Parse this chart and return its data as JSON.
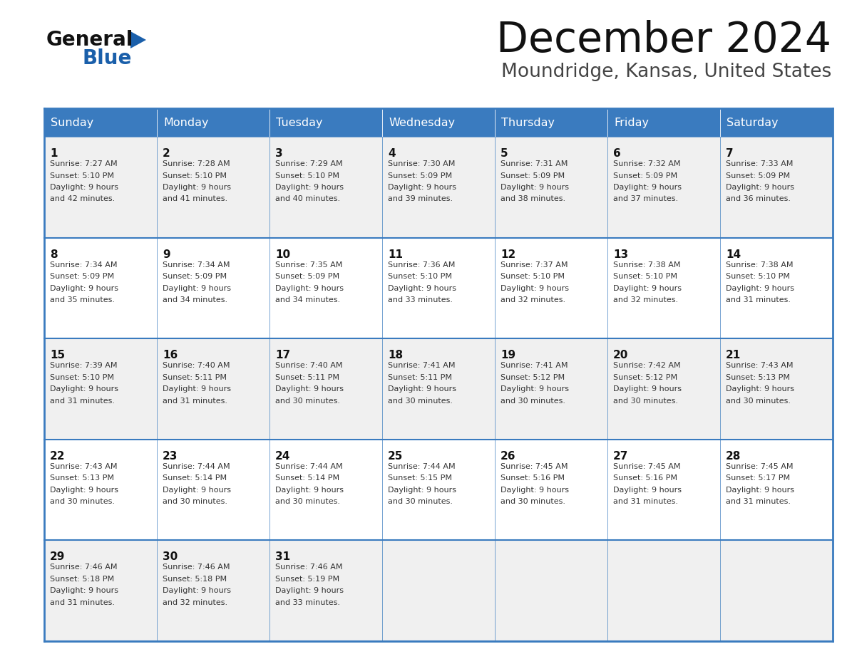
{
  "title": "December 2024",
  "subtitle": "Moundridge, Kansas, United States",
  "days_of_week": [
    "Sunday",
    "Monday",
    "Tuesday",
    "Wednesday",
    "Thursday",
    "Friday",
    "Saturday"
  ],
  "header_bg": "#3a7bbf",
  "header_text": "#ffffff",
  "cell_bg_odd": "#f0f0f0",
  "cell_bg_even": "#ffffff",
  "border_color": "#3a7bbf",
  "day_number_color": "#111111",
  "cell_text_color": "#333333",
  "title_color": "#111111",
  "subtitle_color": "#444444",
  "logo_general_color": "#111111",
  "logo_blue_color": "#1a5faa",
  "logo_tri_color": "#1a5faa",
  "weeks": [
    [
      {
        "day": 1,
        "sunrise": "7:27 AM",
        "sunset": "5:10 PM",
        "daylight": "9 hours and 42 minutes."
      },
      {
        "day": 2,
        "sunrise": "7:28 AM",
        "sunset": "5:10 PM",
        "daylight": "9 hours and 41 minutes."
      },
      {
        "day": 3,
        "sunrise": "7:29 AM",
        "sunset": "5:10 PM",
        "daylight": "9 hours and 40 minutes."
      },
      {
        "day": 4,
        "sunrise": "7:30 AM",
        "sunset": "5:09 PM",
        "daylight": "9 hours and 39 minutes."
      },
      {
        "day": 5,
        "sunrise": "7:31 AM",
        "sunset": "5:09 PM",
        "daylight": "9 hours and 38 minutes."
      },
      {
        "day": 6,
        "sunrise": "7:32 AM",
        "sunset": "5:09 PM",
        "daylight": "9 hours and 37 minutes."
      },
      {
        "day": 7,
        "sunrise": "7:33 AM",
        "sunset": "5:09 PM",
        "daylight": "9 hours and 36 minutes."
      }
    ],
    [
      {
        "day": 8,
        "sunrise": "7:34 AM",
        "sunset": "5:09 PM",
        "daylight": "9 hours and 35 minutes."
      },
      {
        "day": 9,
        "sunrise": "7:34 AM",
        "sunset": "5:09 PM",
        "daylight": "9 hours and 34 minutes."
      },
      {
        "day": 10,
        "sunrise": "7:35 AM",
        "sunset": "5:09 PM",
        "daylight": "9 hours and 34 minutes."
      },
      {
        "day": 11,
        "sunrise": "7:36 AM",
        "sunset": "5:10 PM",
        "daylight": "9 hours and 33 minutes."
      },
      {
        "day": 12,
        "sunrise": "7:37 AM",
        "sunset": "5:10 PM",
        "daylight": "9 hours and 32 minutes."
      },
      {
        "day": 13,
        "sunrise": "7:38 AM",
        "sunset": "5:10 PM",
        "daylight": "9 hours and 32 minutes."
      },
      {
        "day": 14,
        "sunrise": "7:38 AM",
        "sunset": "5:10 PM",
        "daylight": "9 hours and 31 minutes."
      }
    ],
    [
      {
        "day": 15,
        "sunrise": "7:39 AM",
        "sunset": "5:10 PM",
        "daylight": "9 hours and 31 minutes."
      },
      {
        "day": 16,
        "sunrise": "7:40 AM",
        "sunset": "5:11 PM",
        "daylight": "9 hours and 31 minutes."
      },
      {
        "day": 17,
        "sunrise": "7:40 AM",
        "sunset": "5:11 PM",
        "daylight": "9 hours and 30 minutes."
      },
      {
        "day": 18,
        "sunrise": "7:41 AM",
        "sunset": "5:11 PM",
        "daylight": "9 hours and 30 minutes."
      },
      {
        "day": 19,
        "sunrise": "7:41 AM",
        "sunset": "5:12 PM",
        "daylight": "9 hours and 30 minutes."
      },
      {
        "day": 20,
        "sunrise": "7:42 AM",
        "sunset": "5:12 PM",
        "daylight": "9 hours and 30 minutes."
      },
      {
        "day": 21,
        "sunrise": "7:43 AM",
        "sunset": "5:13 PM",
        "daylight": "9 hours and 30 minutes."
      }
    ],
    [
      {
        "day": 22,
        "sunrise": "7:43 AM",
        "sunset": "5:13 PM",
        "daylight": "9 hours and 30 minutes."
      },
      {
        "day": 23,
        "sunrise": "7:44 AM",
        "sunset": "5:14 PM",
        "daylight": "9 hours and 30 minutes."
      },
      {
        "day": 24,
        "sunrise": "7:44 AM",
        "sunset": "5:14 PM",
        "daylight": "9 hours and 30 minutes."
      },
      {
        "day": 25,
        "sunrise": "7:44 AM",
        "sunset": "5:15 PM",
        "daylight": "9 hours and 30 minutes."
      },
      {
        "day": 26,
        "sunrise": "7:45 AM",
        "sunset": "5:16 PM",
        "daylight": "9 hours and 30 minutes."
      },
      {
        "day": 27,
        "sunrise": "7:45 AM",
        "sunset": "5:16 PM",
        "daylight": "9 hours and 31 minutes."
      },
      {
        "day": 28,
        "sunrise": "7:45 AM",
        "sunset": "5:17 PM",
        "daylight": "9 hours and 31 minutes."
      }
    ],
    [
      {
        "day": 29,
        "sunrise": "7:46 AM",
        "sunset": "5:18 PM",
        "daylight": "9 hours and 31 minutes."
      },
      {
        "day": 30,
        "sunrise": "7:46 AM",
        "sunset": "5:18 PM",
        "daylight": "9 hours and 32 minutes."
      },
      {
        "day": 31,
        "sunrise": "7:46 AM",
        "sunset": "5:19 PM",
        "daylight": "9 hours and 33 minutes."
      },
      null,
      null,
      null,
      null
    ]
  ]
}
